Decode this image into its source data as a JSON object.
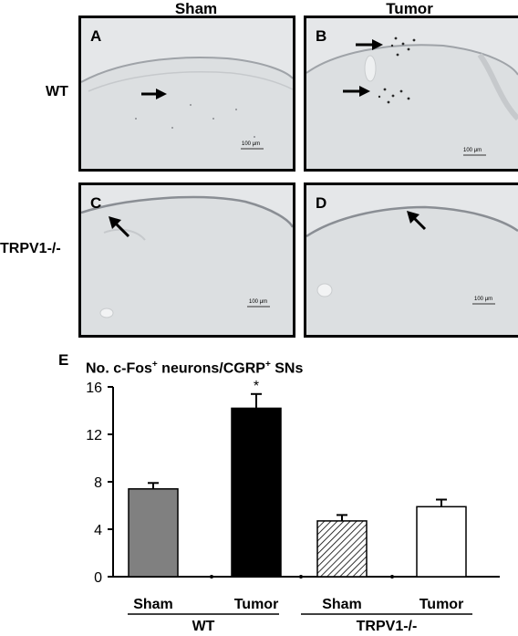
{
  "figure": {
    "columns": [
      "Sham",
      "Tumor"
    ],
    "rows": [
      "WT",
      "TRPV1-/-"
    ],
    "panels": [
      {
        "letter": "A",
        "scale": "100 μm"
      },
      {
        "letter": "B",
        "scale": "100 μm"
      },
      {
        "letter": "C",
        "scale": "100 μm"
      },
      {
        "letter": "D",
        "scale": "100 μm"
      }
    ],
    "panel_e_letter": "E",
    "chart_title": {
      "main": "No. c-Fos",
      "sup1": "+",
      "mid": " neurons/CGRP",
      "sup2": "+",
      "end": " SNs"
    },
    "group_labels": [
      "WT",
      "TRPV1-/-"
    ]
  },
  "chart_data": {
    "type": "bar",
    "categories": [
      "Sham",
      "Tumor",
      "Sham",
      "Tumor"
    ],
    "groups": [
      "WT",
      "WT",
      "TRPV1-/-",
      "TRPV1-/-"
    ],
    "values": [
      7.4,
      14.2,
      4.7,
      5.9
    ],
    "errors": [
      0.5,
      1.2,
      0.5,
      0.6
    ],
    "fills": [
      "gray",
      "black",
      "hatched",
      "white"
    ],
    "significance": [
      "",
      "*",
      "",
      ""
    ],
    "yticks": [
      0,
      4,
      8,
      12,
      16
    ],
    "ylim": [
      0,
      16
    ],
    "colors": {
      "gray": "#808080",
      "black": "#000000",
      "white": "#ffffff"
    }
  }
}
